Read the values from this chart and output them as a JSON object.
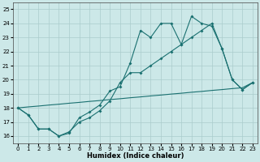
{
  "xlabel": "Humidex (Indice chaleur)",
  "bg_color": "#cce8e8",
  "grid_color": "#aacccc",
  "line_color": "#1a7070",
  "xlim": [
    -0.5,
    23.5
  ],
  "ylim": [
    15.5,
    25.5
  ],
  "xticks": [
    0,
    1,
    2,
    3,
    4,
    5,
    6,
    7,
    8,
    9,
    10,
    11,
    12,
    13,
    14,
    15,
    16,
    17,
    18,
    19,
    20,
    21,
    22,
    23
  ],
  "yticks": [
    16,
    17,
    18,
    19,
    20,
    21,
    22,
    23,
    24,
    25
  ],
  "series1_x": [
    0,
    1,
    2,
    3,
    4,
    5,
    6,
    7,
    8,
    9,
    10,
    11,
    12,
    13,
    14,
    15,
    16,
    17,
    18,
    19,
    20,
    21,
    22,
    23
  ],
  "series1_y": [
    18.0,
    17.5,
    16.5,
    16.5,
    16.0,
    16.2,
    17.3,
    17.7,
    18.2,
    19.2,
    19.5,
    21.2,
    23.5,
    23.0,
    24.0,
    24.0,
    22.5,
    24.5,
    24.0,
    23.8,
    22.2,
    20.0,
    19.3,
    19.8
  ],
  "series2_x": [
    0,
    1,
    2,
    3,
    4,
    5,
    6,
    7,
    8,
    9,
    10,
    11,
    12,
    13,
    14,
    15,
    16,
    17,
    18,
    19,
    20,
    21,
    22,
    23
  ],
  "series2_y": [
    18.0,
    17.5,
    16.5,
    16.5,
    16.0,
    16.3,
    17.0,
    17.3,
    17.8,
    18.5,
    19.8,
    20.5,
    20.5,
    21.0,
    21.5,
    22.0,
    22.5,
    23.0,
    23.5,
    24.0,
    22.2,
    20.0,
    19.3,
    19.8
  ],
  "series3_x": [
    0,
    1,
    2,
    3,
    4,
    5,
    6,
    7,
    8,
    9,
    10,
    11,
    12,
    13,
    14,
    15,
    16,
    17,
    18,
    19,
    20,
    21,
    22,
    23
  ],
  "series3_y": [
    18.0,
    18.07,
    18.13,
    18.2,
    18.26,
    18.33,
    18.39,
    18.46,
    18.52,
    18.59,
    18.65,
    18.72,
    18.78,
    18.85,
    18.91,
    18.98,
    19.04,
    19.11,
    19.17,
    19.24,
    19.3,
    19.37,
    19.43,
    19.8
  ],
  "figsize": [
    3.2,
    2.0
  ],
  "dpi": 100,
  "marker_size": 2.0,
  "line_width": 0.8,
  "tick_fontsize": 5,
  "xlabel_fontsize": 6
}
